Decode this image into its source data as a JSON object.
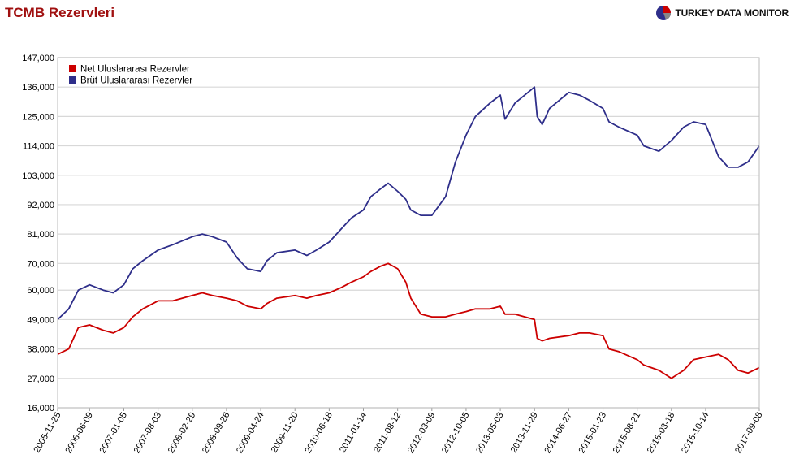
{
  "header": {
    "title": "TCMB Rezervleri",
    "brand": "TURKEY DATA MONITOR",
    "logo_icon": "pie-logo-icon"
  },
  "chart_data": {
    "type": "line",
    "title": "TCMB Rezervleri",
    "xlabel": "",
    "ylabel": "",
    "x_range": [
      "2005-11-25",
      "2017-09-08"
    ],
    "ylim": [
      16000,
      147000
    ],
    "y_ticks": [
      16000,
      27000,
      38000,
      49000,
      60000,
      70000,
      81000,
      92000,
      103000,
      114000,
      125000,
      136000,
      147000
    ],
    "y_tick_labels": [
      "16,000",
      "27,000",
      "38,000",
      "49,000",
      "60,000",
      "70,000",
      "81,000",
      "92,000",
      "103,000",
      "114,000",
      "125,000",
      "136,000",
      "147,000"
    ],
    "x_tick_labels": [
      "2005-11-25",
      "2006-06-09",
      "2007-01-05",
      "2007-08-03",
      "2008-02-29",
      "2008-09-26",
      "2009-04-24",
      "2009-11-20",
      "2010-06-18",
      "2011-01-14",
      "2011-08-12",
      "2012-03-09",
      "2012-10-05",
      "2013-05-03",
      "2013-11-29",
      "2014-06-27",
      "2015-01-23",
      "2015-08-21",
      "2016-03-18",
      "2016-10-14",
      "2017-09-08"
    ],
    "grid": true,
    "legend_position": "top-left",
    "series": [
      {
        "name": "Net Uluslararası Rezervler",
        "color": "#cc0000",
        "x": [
          "2005-11-25",
          "2006-02-01",
          "2006-04-01",
          "2006-06-09",
          "2006-09-01",
          "2006-11-01",
          "2007-01-05",
          "2007-03-01",
          "2007-05-01",
          "2007-08-03",
          "2007-11-01",
          "2008-02-29",
          "2008-05-01",
          "2008-07-01",
          "2008-09-26",
          "2008-12-01",
          "2009-02-01",
          "2009-04-24",
          "2009-06-01",
          "2009-08-01",
          "2009-11-20",
          "2010-02-01",
          "2010-04-01",
          "2010-06-18",
          "2010-09-01",
          "2010-11-01",
          "2011-01-14",
          "2011-03-01",
          "2011-05-01",
          "2011-06-15",
          "2011-08-12",
          "2011-10-01",
          "2011-11-01",
          "2012-01-01",
          "2012-03-09",
          "2012-06-01",
          "2012-08-01",
          "2012-10-05",
          "2012-12-01",
          "2013-03-01",
          "2013-05-03",
          "2013-06-01",
          "2013-08-01",
          "2013-11-29",
          "2013-12-15",
          "2014-01-15",
          "2014-03-01",
          "2014-06-27",
          "2014-09-01",
          "2014-11-01",
          "2015-01-23",
          "2015-03-01",
          "2015-05-01",
          "2015-08-21",
          "2015-10-01",
          "2016-01-01",
          "2016-03-18",
          "2016-06-01",
          "2016-08-01",
          "2016-10-14",
          "2017-01-01",
          "2017-03-01",
          "2017-05-01",
          "2017-07-01",
          "2017-09-08"
        ],
        "values": [
          36000,
          38000,
          46000,
          47000,
          45000,
          44000,
          46000,
          50000,
          53000,
          56000,
          56000,
          58000,
          59000,
          58000,
          57000,
          56000,
          54000,
          53000,
          55000,
          57000,
          58000,
          57000,
          58000,
          59000,
          61000,
          63000,
          65000,
          67000,
          69000,
          70000,
          68000,
          63000,
          57000,
          51000,
          50000,
          50000,
          51000,
          52000,
          53000,
          53000,
          54000,
          51000,
          51000,
          49000,
          42000,
          41000,
          42000,
          43000,
          44000,
          44000,
          43000,
          38000,
          37000,
          34000,
          32000,
          30000,
          27000,
          30000,
          34000,
          35000,
          36000,
          34000,
          30000,
          29000,
          31000
        ]
      },
      {
        "name": "Brüt Uluslararası Rezervler",
        "color": "#2e2e8a",
        "x": [
          "2005-11-25",
          "2006-02-01",
          "2006-04-01",
          "2006-06-09",
          "2006-09-01",
          "2006-11-01",
          "2007-01-05",
          "2007-03-01",
          "2007-05-01",
          "2007-08-03",
          "2007-11-01",
          "2008-02-29",
          "2008-05-01",
          "2008-07-01",
          "2008-09-26",
          "2008-12-01",
          "2009-02-01",
          "2009-04-24",
          "2009-06-01",
          "2009-08-01",
          "2009-11-20",
          "2010-02-01",
          "2010-04-01",
          "2010-06-18",
          "2010-09-01",
          "2010-11-01",
          "2011-01-14",
          "2011-03-01",
          "2011-05-01",
          "2011-06-15",
          "2011-08-12",
          "2011-10-01",
          "2011-11-01",
          "2012-01-01",
          "2012-03-09",
          "2012-06-01",
          "2012-08-01",
          "2012-10-05",
          "2012-12-01",
          "2013-03-01",
          "2013-05-03",
          "2013-06-01",
          "2013-08-01",
          "2013-11-29",
          "2013-12-15",
          "2014-01-15",
          "2014-03-01",
          "2014-06-27",
          "2014-09-01",
          "2014-11-01",
          "2015-01-23",
          "2015-03-01",
          "2015-05-01",
          "2015-08-21",
          "2015-10-01",
          "2016-01-01",
          "2016-03-18",
          "2016-06-01",
          "2016-08-01",
          "2016-10-14",
          "2017-01-01",
          "2017-03-01",
          "2017-05-01",
          "2017-07-01",
          "2017-09-08"
        ],
        "values": [
          49000,
          53000,
          60000,
          62000,
          60000,
          59000,
          62000,
          68000,
          71000,
          75000,
          77000,
          80000,
          81000,
          80000,
          78000,
          72000,
          68000,
          67000,
          71000,
          74000,
          75000,
          73000,
          75000,
          78000,
          83000,
          87000,
          90000,
          95000,
          98000,
          100000,
          97000,
          94000,
          90000,
          88000,
          88000,
          95000,
          108000,
          118000,
          125000,
          130000,
          133000,
          124000,
          130000,
          136000,
          125000,
          122000,
          128000,
          134000,
          133000,
          131000,
          128000,
          123000,
          121000,
          118000,
          114000,
          112000,
          116000,
          121000,
          123000,
          122000,
          110000,
          106000,
          106000,
          108000,
          114000
        ]
      }
    ]
  }
}
